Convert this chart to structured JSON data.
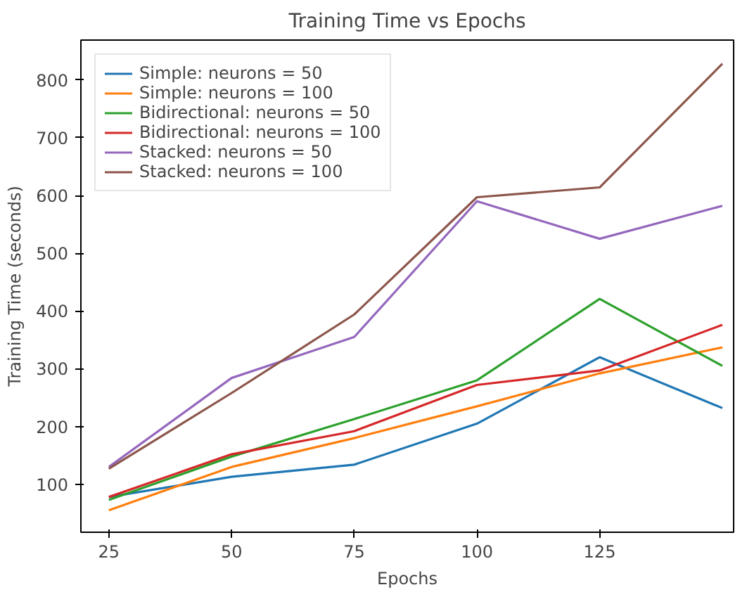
{
  "chart_data": {
    "type": "line",
    "title": "Training Time vs Epochs",
    "xlabel": "Epochs",
    "ylabel": "Training Time (seconds)",
    "x": [
      25,
      50,
      75,
      100,
      125,
      150
    ],
    "xlim": [
      19.3,
      152.3
    ],
    "ylim": [
      17,
      869
    ],
    "xticks": [
      25,
      50,
      75,
      100,
      125
    ],
    "yticks": [
      100,
      200,
      300,
      400,
      500,
      600,
      700,
      800
    ],
    "grid": false,
    "legend": "top left",
    "marker": "none",
    "line_style": "solid",
    "series": [
      {
        "name": "Simple: neurons = 50",
        "color": "#1f77b4",
        "values": [
          78,
          113,
          134,
          205,
          320,
          232
        ]
      },
      {
        "name": "Simple: neurons = 100",
        "color": "#ff7f0e",
        "values": [
          55,
          130,
          180,
          235,
          292,
          337
        ]
      },
      {
        "name": "Bidirectional: neurons = 50",
        "color": "#2ca02c",
        "values": [
          73,
          148,
          213,
          280,
          421,
          305
        ]
      },
      {
        "name": "Bidirectional: neurons = 100",
        "color": "#d62728",
        "values": [
          78,
          152,
          192,
          272,
          297,
          376
        ]
      },
      {
        "name": "Stacked: neurons = 50",
        "color": "#9467bd",
        "values": [
          130,
          284,
          355,
          590,
          525,
          582
        ]
      },
      {
        "name": "Stacked: neurons = 100",
        "color": "#8c564b",
        "values": [
          127,
          258,
          394,
          597,
          614,
          828
        ]
      }
    ]
  }
}
